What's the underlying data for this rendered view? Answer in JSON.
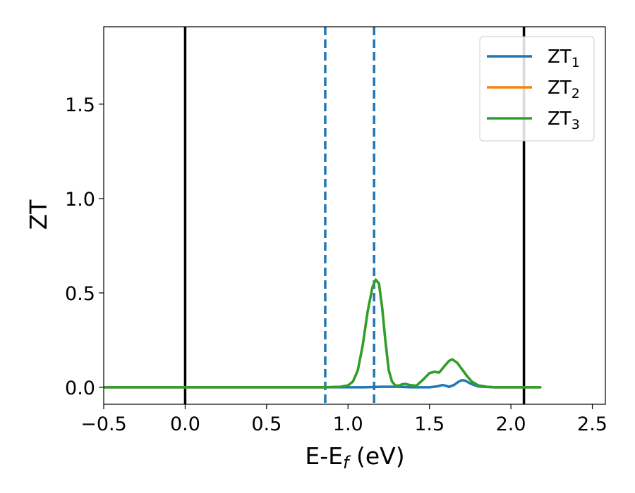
{
  "chart_data": {
    "type": "line",
    "xlabel": "E-E",
    "xlabel_sub": "f",
    "xlabel_unit": " (eV)",
    "ylabel": "ZT",
    "xlim": [
      -0.5,
      2.58
    ],
    "ylim": [
      -0.09,
      1.91
    ],
    "xticks": [
      -0.5,
      0.0,
      0.5,
      1.0,
      1.5,
      2.0,
      2.5
    ],
    "xtick_labels": [
      "−0.5",
      "0.0",
      "0.5",
      "1.0",
      "1.5",
      "2.0",
      "2.5"
    ],
    "yticks": [
      0.0,
      0.5,
      1.0,
      1.5
    ],
    "ytick_labels": [
      "0.0",
      "0.5",
      "1.0",
      "1.5"
    ],
    "grid": false,
    "legend_position": "top-right",
    "vlines": [
      {
        "x": 0.0,
        "style": "solid",
        "color": "#000000"
      },
      {
        "x": 2.08,
        "style": "solid",
        "color": "#000000"
      },
      {
        "x": 0.86,
        "style": "dashed",
        "color": "#1f77b4"
      },
      {
        "x": 1.16,
        "style": "dashed",
        "color": "#1f77b4"
      }
    ],
    "series": [
      {
        "name": "ZT",
        "name_sub": "1",
        "color": "#1f77b4",
        "x": [
          -0.5,
          0.0,
          0.5,
          0.85,
          1.0,
          1.1,
          1.2,
          1.3,
          1.4,
          1.5,
          1.55,
          1.58,
          1.6,
          1.62,
          1.65,
          1.68,
          1.7,
          1.72,
          1.75,
          1.8,
          1.9,
          2.0,
          2.18
        ],
        "y": [
          0.0,
          0.0,
          0.0,
          0.0,
          0.0,
          0.0,
          0.003,
          0.003,
          0.0,
          0.0,
          0.005,
          0.012,
          0.008,
          0.002,
          0.012,
          0.03,
          0.038,
          0.035,
          0.02,
          0.004,
          0.0,
          0.0,
          0.0
        ]
      },
      {
        "name": "ZT",
        "name_sub": "2",
        "color": "#ff7f0e",
        "x": [
          -0.5,
          0.0,
          0.5,
          0.85,
          0.95,
          1.0,
          1.03,
          1.06,
          1.09,
          1.12,
          1.15,
          1.17,
          1.19,
          1.21,
          1.23,
          1.25,
          1.27,
          1.29,
          1.31,
          1.33,
          1.35,
          1.38,
          1.42,
          1.46,
          1.5,
          1.53,
          1.56,
          1.59,
          1.62,
          1.64,
          1.67,
          1.7,
          1.73,
          1.76,
          1.8,
          1.85,
          1.9,
          2.0,
          2.18
        ],
        "y": [
          0.0,
          0.0,
          0.0,
          0.0,
          0.002,
          0.01,
          0.03,
          0.09,
          0.22,
          0.4,
          0.53,
          0.57,
          0.55,
          0.42,
          0.24,
          0.09,
          0.03,
          0.01,
          0.008,
          0.015,
          0.018,
          0.012,
          0.008,
          0.04,
          0.075,
          0.082,
          0.078,
          0.11,
          0.14,
          0.148,
          0.13,
          0.095,
          0.06,
          0.03,
          0.01,
          0.003,
          0.0,
          0.0,
          0.0
        ]
      },
      {
        "name": "ZT",
        "name_sub": "3",
        "color": "#2ca02c",
        "x": [
          -0.5,
          0.0,
          0.5,
          0.85,
          0.95,
          1.0,
          1.03,
          1.06,
          1.09,
          1.12,
          1.15,
          1.17,
          1.19,
          1.21,
          1.23,
          1.25,
          1.27,
          1.29,
          1.31,
          1.33,
          1.35,
          1.38,
          1.42,
          1.46,
          1.5,
          1.53,
          1.56,
          1.59,
          1.62,
          1.64,
          1.67,
          1.7,
          1.73,
          1.76,
          1.8,
          1.85,
          1.9,
          2.0,
          2.18
        ],
        "y": [
          0.0,
          0.0,
          0.0,
          0.0,
          0.002,
          0.01,
          0.03,
          0.09,
          0.22,
          0.4,
          0.53,
          0.57,
          0.55,
          0.42,
          0.24,
          0.09,
          0.03,
          0.01,
          0.008,
          0.015,
          0.018,
          0.012,
          0.008,
          0.04,
          0.075,
          0.082,
          0.078,
          0.11,
          0.14,
          0.148,
          0.13,
          0.095,
          0.06,
          0.03,
          0.01,
          0.003,
          0.0,
          0.0,
          0.0
        ]
      }
    ]
  }
}
